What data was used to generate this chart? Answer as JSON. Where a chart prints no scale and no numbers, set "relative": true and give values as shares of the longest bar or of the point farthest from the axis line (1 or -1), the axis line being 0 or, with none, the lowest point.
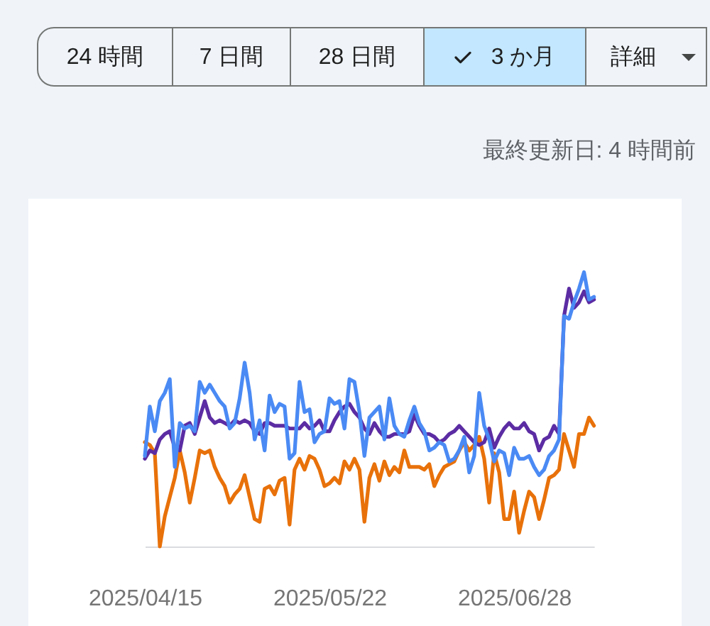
{
  "chart_data": {
    "type": "line",
    "subtitle": "最終更新日: 4 時間前",
    "annotations": [
      "24 時間",
      "7 日間",
      "28 日間",
      "3 か月",
      "詳細"
    ],
    "relative": true,
    "x": [
      "2025-04-15",
      "2025-04-16",
      "2025-04-17",
      "2025-04-18",
      "2025-04-19",
      "2025-04-20",
      "2025-04-21",
      "2025-04-22",
      "2025-04-23",
      "2025-04-24",
      "2025-04-25",
      "2025-04-26",
      "2025-04-27",
      "2025-04-28",
      "2025-04-29",
      "2025-04-30",
      "2025-05-01",
      "2025-05-02",
      "2025-05-03",
      "2025-05-04",
      "2025-05-05",
      "2025-05-06",
      "2025-05-07",
      "2025-05-08",
      "2025-05-09",
      "2025-05-10",
      "2025-05-11",
      "2025-05-12",
      "2025-05-13",
      "2025-05-14",
      "2025-05-15",
      "2025-05-16",
      "2025-05-17",
      "2025-05-18",
      "2025-05-19",
      "2025-05-20",
      "2025-05-21",
      "2025-05-22",
      "2025-05-23",
      "2025-05-24",
      "2025-05-25",
      "2025-05-26",
      "2025-05-27",
      "2025-05-28",
      "2025-05-29",
      "2025-05-30",
      "2025-05-31",
      "2025-06-01",
      "2025-06-02",
      "2025-06-03",
      "2025-06-04",
      "2025-06-05",
      "2025-06-06",
      "2025-06-07",
      "2025-06-08",
      "2025-06-09",
      "2025-06-10",
      "2025-06-11",
      "2025-06-12",
      "2025-06-13",
      "2025-06-14",
      "2025-06-15",
      "2025-06-16",
      "2025-06-17",
      "2025-06-18",
      "2025-06-19",
      "2025-06-20",
      "2025-06-21",
      "2025-06-22",
      "2025-06-23",
      "2025-06-24",
      "2025-06-25",
      "2025-06-26",
      "2025-06-27",
      "2025-06-28",
      "2025-06-29",
      "2025-06-30",
      "2025-07-01",
      "2025-07-02",
      "2025-07-03",
      "2025-07-04",
      "2025-07-05",
      "2025-07-06",
      "2025-07-07",
      "2025-07-08",
      "2025-07-09",
      "2025-07-10",
      "2025-07-11",
      "2025-07-12",
      "2025-07-13",
      "2025-07-14"
    ],
    "xlim": [
      "2025-04-15",
      "2025-07-14"
    ],
    "xticks": [
      {
        "value": "2025-04-15",
        "label": "2025/04/15"
      },
      {
        "value": "2025-05-22",
        "label": "2025/05/22"
      },
      {
        "value": "2025-06-28",
        "label": "2025/06/28"
      }
    ],
    "series": [
      {
        "color": "#e8710a",
        "values": [
          0.38,
          0.37,
          0.34,
          0,
          0.11,
          0.18,
          0.25,
          0.35,
          0.27,
          0.16,
          0.25,
          0.35,
          0.34,
          0.35,
          0.29,
          0.25,
          0.22,
          0.16,
          0.19,
          0.21,
          0.26,
          0.18,
          0.1,
          0.09,
          0.21,
          0.22,
          0.19,
          0.24,
          0.25,
          0.08,
          0.28,
          0.32,
          0.28,
          0.33,
          0.32,
          0.28,
          0.22,
          0.23,
          0.25,
          0.23,
          0.31,
          0.28,
          0.32,
          0.28,
          0.09,
          0.25,
          0.3,
          0.24,
          0.31,
          0.26,
          0.29,
          0.27,
          0.35,
          0.29,
          0.29,
          0.29,
          0.28,
          0.3,
          0.22,
          0.26,
          0.29,
          0.3,
          0.31,
          0.35,
          0.38,
          0.35,
          0.37,
          0.4,
          0.32,
          0.16,
          0.34,
          0.27,
          0.1,
          0.1,
          0.2,
          0.05,
          0.13,
          0.2,
          0.18,
          0.1,
          0.17,
          0.25,
          0.26,
          0.28,
          0.41,
          0.35,
          0.29,
          0.41,
          0.41,
          0.47,
          0.44
        ]
      },
      {
        "color": "#5b2ca3",
        "values": [
          0.32,
          0.35,
          0.34,
          0.39,
          0.41,
          0.42,
          0.36,
          0.35,
          0.44,
          0.45,
          0.41,
          0.47,
          0.53,
          0.47,
          0.45,
          0.46,
          0.45,
          0.44,
          0.46,
          0.45,
          0.46,
          0.45,
          0.42,
          0.41,
          0.45,
          0.45,
          0.44,
          0.44,
          0.44,
          0.43,
          0.43,
          0.43,
          0.45,
          0.43,
          0.44,
          0.46,
          0.42,
          0.42,
          0.46,
          0.49,
          0.51,
          0.52,
          0.49,
          0.47,
          0.43,
          0.41,
          0.45,
          0.42,
          0.4,
          0.4,
          0.41,
          0.41,
          0.41,
          0.42,
          0.48,
          0.44,
          0.41,
          0.41,
          0.4,
          0.38,
          0.39,
          0.41,
          0.42,
          0.44,
          0.42,
          0.4,
          0.38,
          0.37,
          0.38,
          0.43,
          0.36,
          0.4,
          0.43,
          0.45,
          0.43,
          0.43,
          0.45,
          0.42,
          0.41,
          0.35,
          0.39,
          0.4,
          0.44,
          0.41,
          0.84,
          0.94,
          0.87,
          0.89,
          0.93,
          0.89,
          0.9
        ]
      },
      {
        "color": "#4a8af4",
        "values": [
          0.33,
          0.51,
          0.42,
          0.53,
          0.56,
          0.61,
          0.29,
          0.45,
          0.43,
          0.44,
          0.42,
          0.6,
          0.56,
          0.59,
          0.56,
          0.53,
          0.51,
          0.43,
          0.45,
          0.54,
          0.67,
          0.56,
          0.39,
          0.46,
          0.35,
          0.55,
          0.49,
          0.52,
          0.51,
          0.32,
          0.34,
          0.6,
          0.49,
          0.5,
          0.38,
          0.41,
          0.42,
          0.54,
          0.52,
          0.53,
          0.43,
          0.61,
          0.6,
          0.49,
          0.33,
          0.47,
          0.49,
          0.51,
          0.39,
          0.54,
          0.44,
          0.41,
          0.4,
          0.46,
          0.51,
          0.45,
          0.42,
          0.35,
          0.36,
          0.38,
          0.37,
          0.31,
          0.32,
          0.35,
          0.4,
          0.27,
          0.33,
          0.56,
          0.44,
          0.39,
          0.31,
          0.35,
          0.34,
          0.26,
          0.36,
          0.32,
          0.32,
          0.33,
          0.29,
          0.26,
          0.28,
          0.33,
          0.35,
          0.39,
          0.84,
          0.83,
          0.89,
          0.94,
          1,
          0.9,
          0.91
        ]
      }
    ]
  }
}
